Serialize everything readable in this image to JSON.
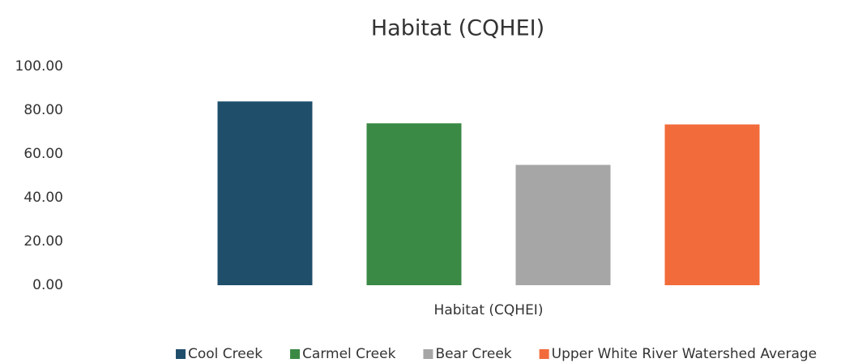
{
  "chart_data": {
    "type": "bar",
    "title": "Habitat (CQHEI)",
    "categories": [
      "Habitat (CQHEI)"
    ],
    "series": [
      {
        "name": "Cool Creek",
        "color": "#1f4e6b",
        "values": [
          84
        ]
      },
      {
        "name": "Carmel Creek",
        "color": "#3a8a45",
        "values": [
          74
        ]
      },
      {
        "name": "Bear Creek",
        "color": "#a6a6a6",
        "values": [
          55
        ]
      },
      {
        "name": "Upper White River Watershed Average",
        "color": "#f26b3a",
        "values": [
          73.5
        ]
      }
    ],
    "ylim": [
      0,
      100
    ],
    "yticks": [
      {
        "value": 0,
        "label": "0.00"
      },
      {
        "value": 20,
        "label": "20.00"
      },
      {
        "value": 40,
        "label": "40.00"
      },
      {
        "value": 60,
        "label": "60.00"
      },
      {
        "value": 80,
        "label": "80.00"
      },
      {
        "value": 100,
        "label": "100.00"
      }
    ],
    "grid": false,
    "legend": "bottom"
  }
}
